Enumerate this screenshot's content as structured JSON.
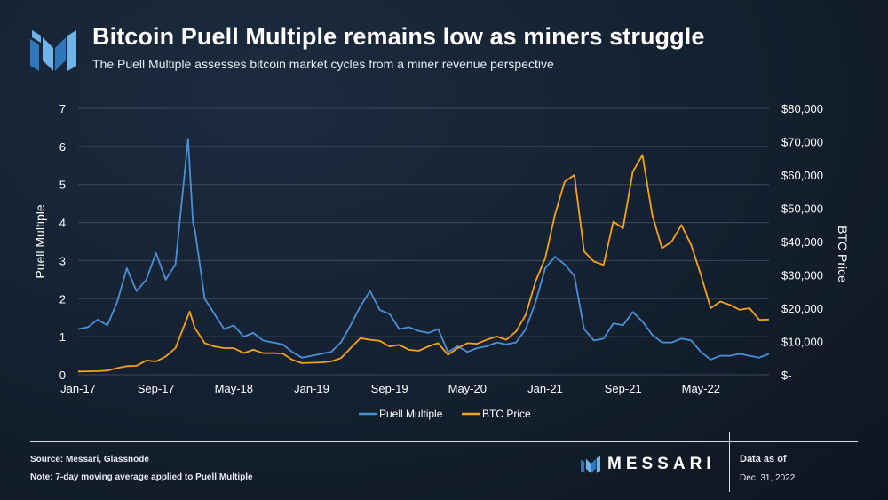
{
  "header": {
    "title": "Bitcoin Puell Multiple remains low as miners struggle",
    "subtitle": "The Puell Multiple assesses bitcoin market cycles from a miner revenue perspective"
  },
  "footer": {
    "source": "Source: Messari, Glassnode",
    "note": "Note: 7-day moving average applied to Puell Multiple",
    "brand": "MESSARI",
    "as_of_label": "Data as of",
    "as_of_date": "Dec. 31, 2022"
  },
  "colors": {
    "puell": "#4a90d9",
    "btc": "#f5a31a",
    "grid": "#3a4a5c",
    "text": "#ffffff",
    "logo_light": "#6fb3e8",
    "logo_dark": "#2f77bd"
  },
  "icons": {
    "logo": "messari-logo-icon"
  },
  "chart_data": {
    "type": "line",
    "title": "Bitcoin Puell Multiple remains low as miners struggle",
    "x_range": [
      "Jan-17",
      "Dec-22"
    ],
    "x_ticks": [
      "Jan-17",
      "Sep-17",
      "May-18",
      "Jan-19",
      "Sep-19",
      "May-20",
      "Jan-21",
      "Sep-21",
      "May-22"
    ],
    "y_left": {
      "label": "Puell Multiple",
      "ticks": [
        "0",
        "1",
        "2",
        "3",
        "4",
        "5",
        "6",
        "7"
      ],
      "range": [
        0,
        7
      ]
    },
    "y_right": {
      "label": "BTC Price",
      "ticks": [
        "$-",
        "$10,000",
        "$20,000",
        "$30,000",
        "$40,000",
        "$50,000",
        "$60,000",
        "$70,000",
        "$80,000"
      ],
      "range": [
        0,
        80000
      ]
    },
    "grid": true,
    "legend_position": "bottom",
    "series": [
      {
        "name": "Puell Multiple",
        "axis": "left",
        "points": [
          [
            "2017-01",
            1.2
          ],
          [
            "2017-02",
            1.25
          ],
          [
            "2017-03",
            1.45
          ],
          [
            "2017-04",
            1.3
          ],
          [
            "2017-05",
            1.9
          ],
          [
            "2017-06",
            2.8
          ],
          [
            "2017-07",
            2.2
          ],
          [
            "2017-08",
            2.5
          ],
          [
            "2017-09",
            3.2
          ],
          [
            "2017-10",
            2.5
          ],
          [
            "2017-11",
            2.9
          ],
          [
            "2017-12-10",
            6.2
          ],
          [
            "2017-12-25",
            4.0
          ],
          [
            "2018-01",
            3.8
          ],
          [
            "2018-02",
            2.0
          ],
          [
            "2018-03",
            1.6
          ],
          [
            "2018-04",
            1.2
          ],
          [
            "2018-05",
            1.3
          ],
          [
            "2018-06",
            1.0
          ],
          [
            "2018-07",
            1.1
          ],
          [
            "2018-08",
            0.9
          ],
          [
            "2018-09",
            0.85
          ],
          [
            "2018-10",
            0.8
          ],
          [
            "2018-11",
            0.6
          ],
          [
            "2018-12",
            0.45
          ],
          [
            "2019-01",
            0.5
          ],
          [
            "2019-02",
            0.55
          ],
          [
            "2019-03",
            0.6
          ],
          [
            "2019-04",
            0.85
          ],
          [
            "2019-05",
            1.3
          ],
          [
            "2019-06",
            1.8
          ],
          [
            "2019-07",
            2.2
          ],
          [
            "2019-08",
            1.7
          ],
          [
            "2019-09",
            1.6
          ],
          [
            "2019-10",
            1.2
          ],
          [
            "2019-11",
            1.25
          ],
          [
            "2019-12",
            1.15
          ],
          [
            "2020-01",
            1.1
          ],
          [
            "2020-02",
            1.2
          ],
          [
            "2020-03",
            0.6
          ],
          [
            "2020-04",
            0.75
          ],
          [
            "2020-05",
            0.6
          ],
          [
            "2020-06",
            0.7
          ],
          [
            "2020-07",
            0.75
          ],
          [
            "2020-08",
            0.85
          ],
          [
            "2020-09",
            0.8
          ],
          [
            "2020-10",
            0.85
          ],
          [
            "2020-11",
            1.2
          ],
          [
            "2020-12",
            1.9
          ],
          [
            "2021-01",
            2.8
          ],
          [
            "2021-02",
            3.1
          ],
          [
            "2021-03",
            2.9
          ],
          [
            "2021-04",
            2.6
          ],
          [
            "2021-05",
            1.2
          ],
          [
            "2021-06",
            0.9
          ],
          [
            "2021-07",
            0.95
          ],
          [
            "2021-08",
            1.35
          ],
          [
            "2021-09",
            1.3
          ],
          [
            "2021-10",
            1.65
          ],
          [
            "2021-11",
            1.4
          ],
          [
            "2021-12",
            1.05
          ],
          [
            "2022-01",
            0.85
          ],
          [
            "2022-02",
            0.85
          ],
          [
            "2022-03",
            0.95
          ],
          [
            "2022-04",
            0.9
          ],
          [
            "2022-05",
            0.6
          ],
          [
            "2022-06",
            0.4
          ],
          [
            "2022-07",
            0.5
          ],
          [
            "2022-08",
            0.5
          ],
          [
            "2022-09",
            0.55
          ],
          [
            "2022-10",
            0.5
          ],
          [
            "2022-11",
            0.45
          ],
          [
            "2022-12",
            0.55
          ]
        ]
      },
      {
        "name": "BTC Price",
        "axis": "right",
        "points": [
          [
            "2017-01",
            1000
          ],
          [
            "2017-02",
            1050
          ],
          [
            "2017-03",
            1100
          ],
          [
            "2017-04",
            1250
          ],
          [
            "2017-05",
            2000
          ],
          [
            "2017-06",
            2600
          ],
          [
            "2017-07",
            2700
          ],
          [
            "2017-08",
            4300
          ],
          [
            "2017-09",
            4000
          ],
          [
            "2017-10",
            5500
          ],
          [
            "2017-11",
            8000
          ],
          [
            "2017-12-15",
            19000
          ],
          [
            "2018-01",
            14000
          ],
          [
            "2018-02",
            9500
          ],
          [
            "2018-03",
            8500
          ],
          [
            "2018-04",
            8000
          ],
          [
            "2018-05",
            8000
          ],
          [
            "2018-06",
            6500
          ],
          [
            "2018-07",
            7500
          ],
          [
            "2018-08",
            6500
          ],
          [
            "2018-09",
            6500
          ],
          [
            "2018-10",
            6400
          ],
          [
            "2018-11",
            4500
          ],
          [
            "2018-12",
            3500
          ],
          [
            "2019-01",
            3600
          ],
          [
            "2019-02",
            3700
          ],
          [
            "2019-03",
            4000
          ],
          [
            "2019-04",
            5000
          ],
          [
            "2019-05",
            8000
          ],
          [
            "2019-06",
            11000
          ],
          [
            "2019-07",
            10500
          ],
          [
            "2019-08",
            10200
          ],
          [
            "2019-09",
            8500
          ],
          [
            "2019-10",
            9000
          ],
          [
            "2019-11",
            7500
          ],
          [
            "2019-12",
            7200
          ],
          [
            "2020-01",
            8500
          ],
          [
            "2020-02",
            9500
          ],
          [
            "2020-03",
            6000
          ],
          [
            "2020-04",
            8000
          ],
          [
            "2020-05",
            9500
          ],
          [
            "2020-06",
            9300
          ],
          [
            "2020-07",
            10500
          ],
          [
            "2020-08",
            11500
          ],
          [
            "2020-09",
            10500
          ],
          [
            "2020-10",
            13000
          ],
          [
            "2020-11",
            18000
          ],
          [
            "2020-12",
            28000
          ],
          [
            "2021-01",
            35000
          ],
          [
            "2021-02",
            48000
          ],
          [
            "2021-03",
            58000
          ],
          [
            "2021-04",
            60000
          ],
          [
            "2021-05",
            37000
          ],
          [
            "2021-06",
            34000
          ],
          [
            "2021-07",
            33000
          ],
          [
            "2021-08",
            46000
          ],
          [
            "2021-09",
            44000
          ],
          [
            "2021-10",
            61000
          ],
          [
            "2021-11",
            66000
          ],
          [
            "2021-12",
            48000
          ],
          [
            "2022-01",
            38000
          ],
          [
            "2022-02",
            40000
          ],
          [
            "2022-03",
            45000
          ],
          [
            "2022-04",
            39000
          ],
          [
            "2022-05",
            30000
          ],
          [
            "2022-06",
            20000
          ],
          [
            "2022-07",
            22000
          ],
          [
            "2022-08",
            21000
          ],
          [
            "2022-09",
            19500
          ],
          [
            "2022-10",
            20000
          ],
          [
            "2022-11",
            16500
          ],
          [
            "2022-12",
            16600
          ]
        ]
      }
    ]
  }
}
